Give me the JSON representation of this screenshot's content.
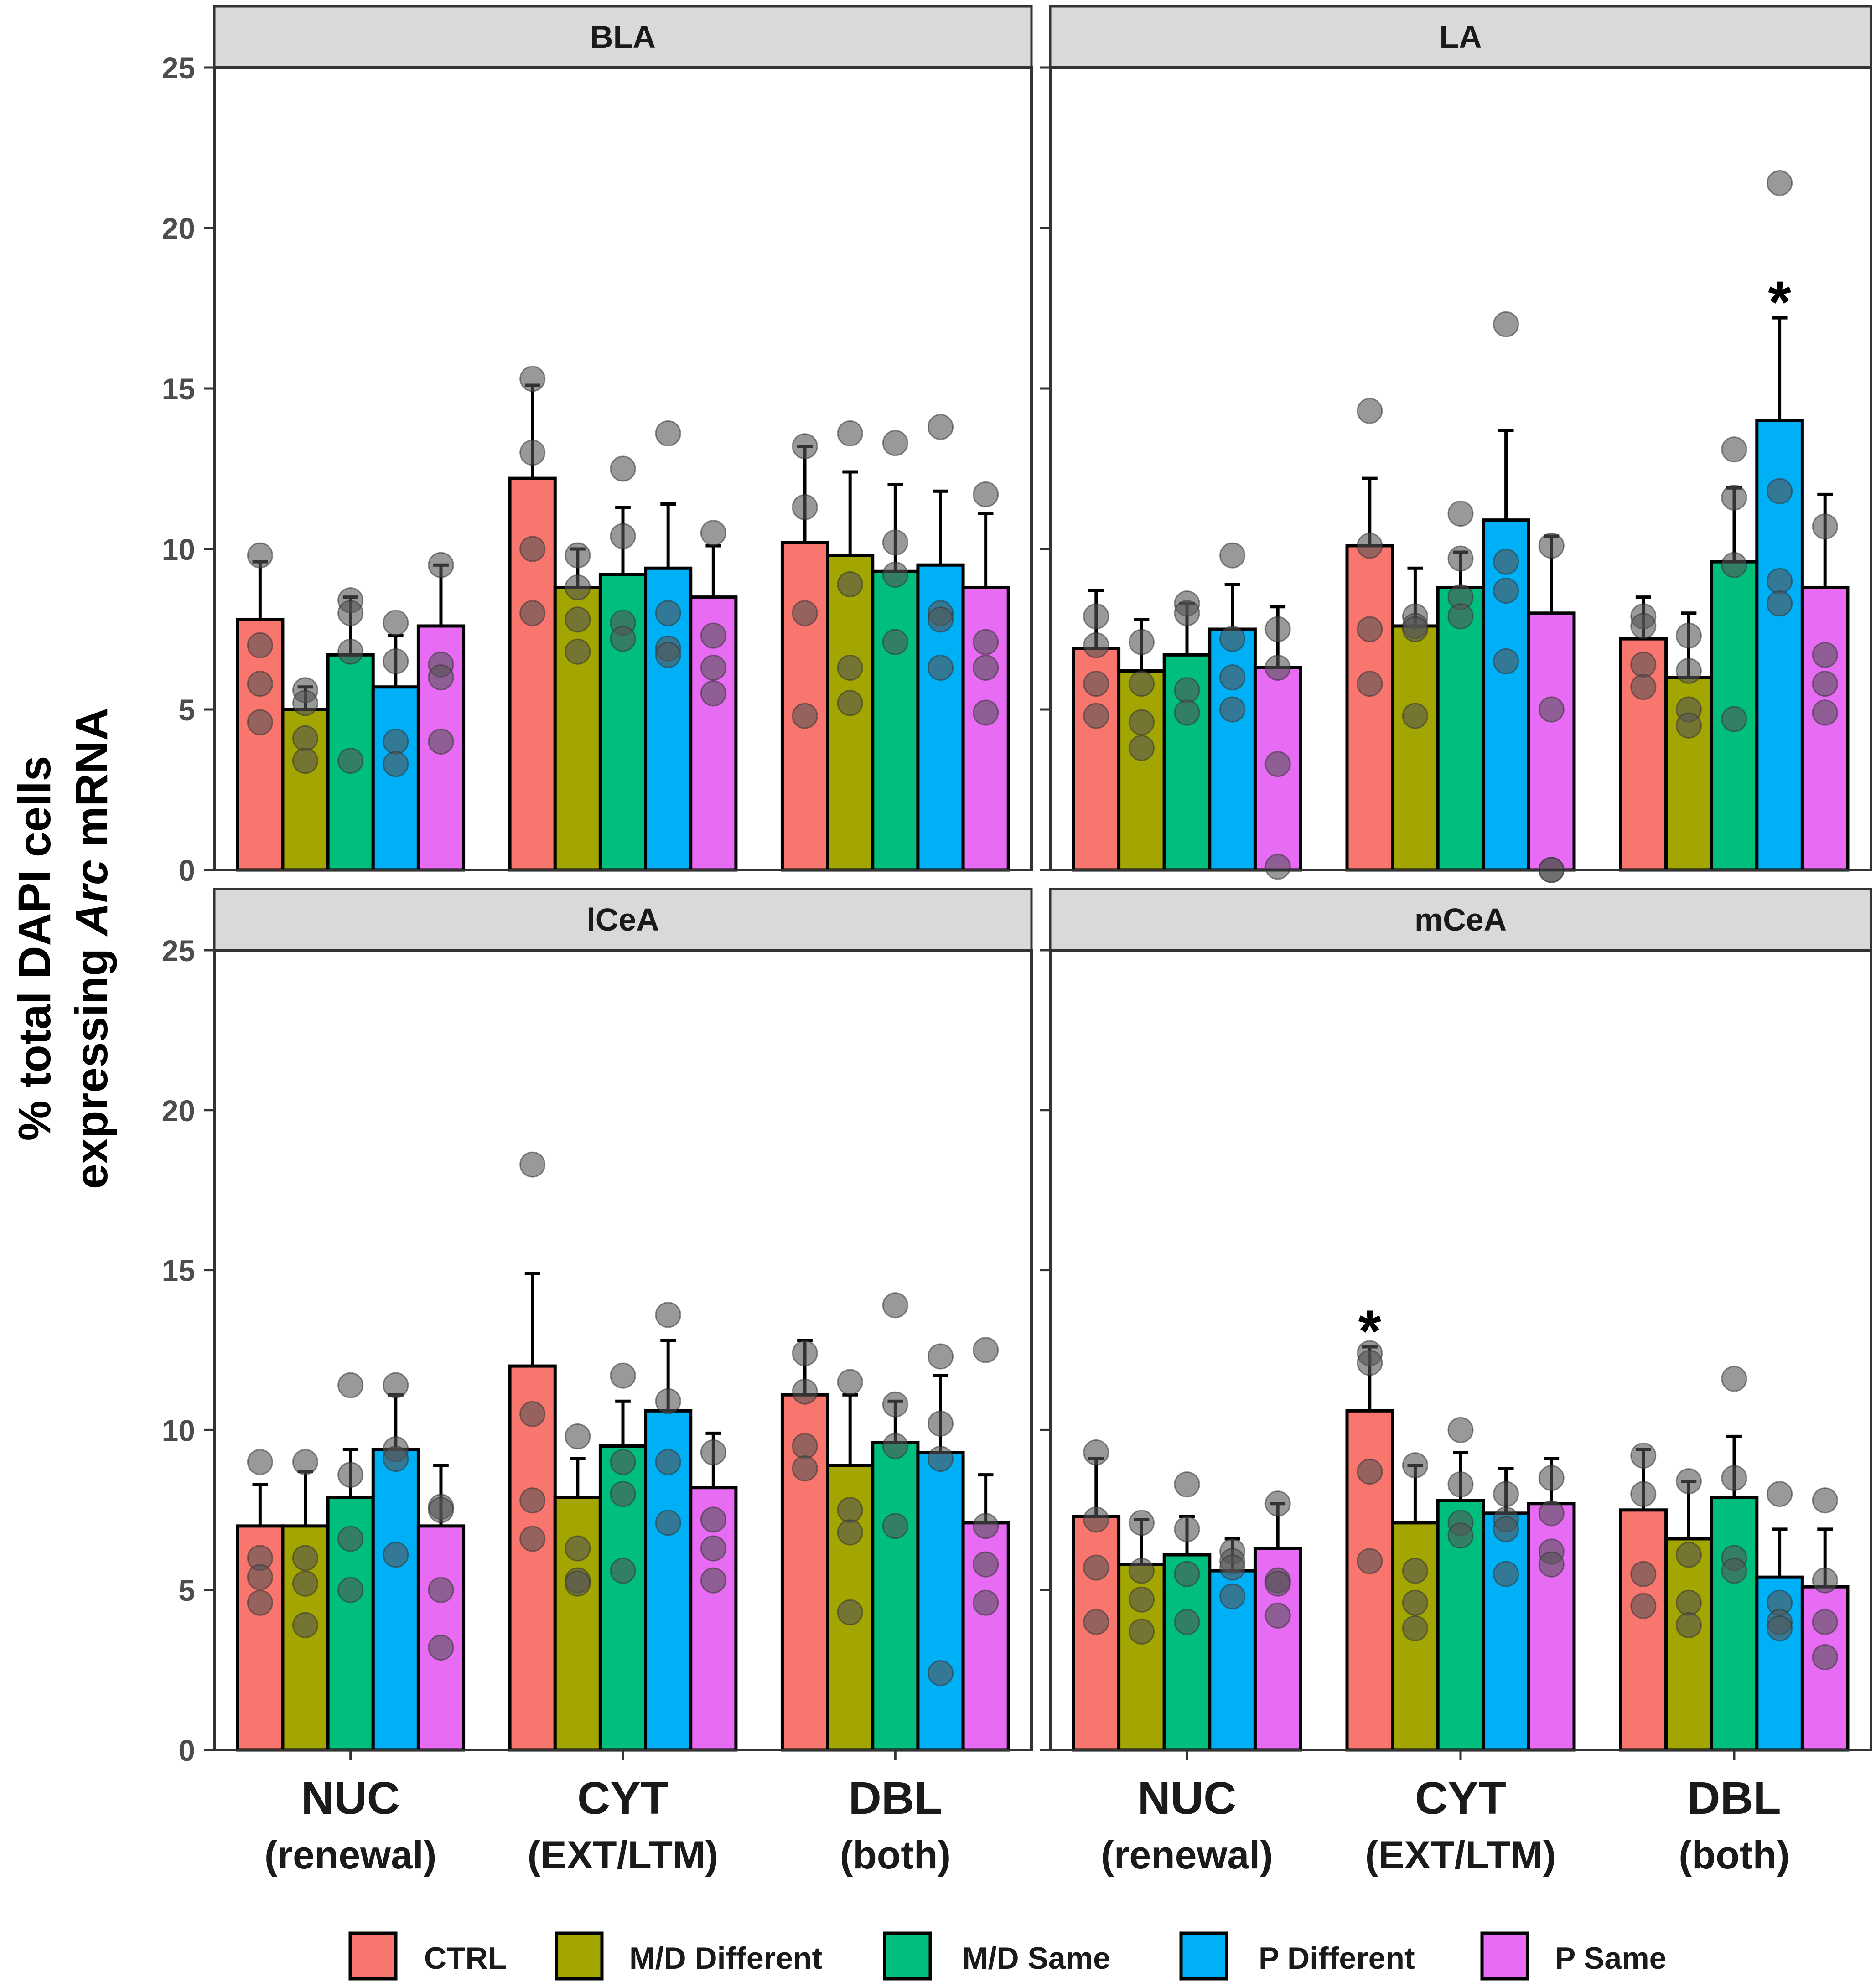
{
  "chart_data": {
    "type": "bar",
    "y_axis_title": {
      "line1": "% total DAPI cells",
      "line2_prefix": "expressing ",
      "line2_italic": "Arc",
      "line2_suffix": " mRNA"
    },
    "ylim": [
      0,
      25
    ],
    "yticks": [
      0,
      5,
      10,
      15,
      20,
      25
    ],
    "categories": [
      {
        "label": "NUC",
        "sublabel": "(renewal)"
      },
      {
        "label": "CYT",
        "sublabel": "(EXT/LTM)"
      },
      {
        "label": "DBL",
        "sublabel": "(both)"
      }
    ],
    "groups": [
      "CTRL",
      "M/D Different",
      "M/D Same",
      "P Different",
      "P Same"
    ],
    "colors": {
      "CTRL": "#F8766D",
      "M/D Different": "#A3A500",
      "M/D Same": "#00BF7D",
      "P Different": "#00B0F6",
      "P Same": "#E76BF3"
    },
    "point_color": "#555555",
    "significance_marker": "*",
    "panels": [
      {
        "title": "BLA",
        "series": [
          {
            "name": "CTRL",
            "values": [
              7.8,
              12.2,
              10.2
            ],
            "errors": [
              1.8,
              2.9,
              3.0
            ],
            "points": [
              [
                9.8,
                7.0,
                5.8,
                4.6
              ],
              [
                15.3,
                13.0,
                10.0,
                8.0
              ],
              [
                13.2,
                11.3,
                8.0,
                4.8
              ]
            ]
          },
          {
            "name": "M/D Different",
            "values": [
              5.0,
              8.8,
              9.8
            ],
            "errors": [
              0.7,
              1.2,
              2.6
            ],
            "points": [
              [
                5.6,
                5.2,
                4.1,
                3.4
              ],
              [
                9.8,
                8.8,
                7.8,
                6.8
              ],
              [
                13.6,
                8.9,
                6.3,
                5.2
              ]
            ]
          },
          {
            "name": "M/D Same",
            "values": [
              6.7,
              9.2,
              9.3
            ],
            "errors": [
              1.8,
              2.1,
              2.7
            ],
            "points": [
              [
                8.4,
                8.0,
                6.8,
                3.4
              ],
              [
                12.5,
                10.4,
                7.7,
                7.2
              ],
              [
                13.3,
                10.2,
                9.2,
                7.1
              ]
            ]
          },
          {
            "name": "P Different",
            "values": [
              5.7,
              9.4,
              9.5
            ],
            "errors": [
              1.6,
              2.0,
              2.3
            ],
            "points": [
              [
                7.7,
                6.5,
                4.0,
                3.3
              ],
              [
                13.6,
                8.0,
                6.9,
                6.7
              ],
              [
                13.8,
                8.0,
                7.8,
                6.3
              ]
            ]
          },
          {
            "name": "P Same",
            "values": [
              7.6,
              8.5,
              8.8
            ],
            "errors": [
              1.9,
              1.6,
              2.3
            ],
            "points": [
              [
                9.5,
                6.4,
                6.0,
                4.0
              ],
              [
                10.5,
                7.3,
                6.3,
                5.5
              ],
              [
                11.7,
                7.1,
                6.3,
                4.9
              ]
            ]
          }
        ],
        "significant": []
      },
      {
        "title": "LA",
        "series": [
          {
            "name": "CTRL",
            "values": [
              6.9,
              10.1,
              7.2
            ],
            "errors": [
              1.8,
              2.1,
              1.3
            ],
            "points": [
              [
                7.9,
                7.0,
                5.8,
                4.8
              ],
              [
                14.3,
                10.1,
                7.5,
                5.8
              ],
              [
                7.9,
                7.6,
                6.4,
                5.7
              ]
            ]
          },
          {
            "name": "M/D Different",
            "values": [
              6.2,
              7.6,
              6.0
            ],
            "errors": [
              1.6,
              1.8,
              2.0
            ],
            "points": [
              [
                7.1,
                5.8,
                4.6,
                3.8
              ],
              [
                7.9,
                7.6,
                7.5,
                4.8
              ],
              [
                7.3,
                6.2,
                5.0,
                4.5
              ]
            ]
          },
          {
            "name": "M/D Same",
            "values": [
              6.7,
              8.8,
              9.6
            ],
            "errors": [
              1.6,
              1.1,
              2.3
            ],
            "points": [
              [
                8.3,
                8.0,
                5.6,
                4.9
              ],
              [
                11.1,
                9.7,
                8.5,
                7.9
              ],
              [
                13.1,
                11.6,
                9.5,
                4.7
              ]
            ]
          },
          {
            "name": "P Different",
            "values": [
              7.5,
              10.9,
              14.0
            ],
            "errors": [
              1.4,
              2.8,
              3.2
            ],
            "points": [
              [
                9.8,
                7.2,
                6.0,
                5.0
              ],
              [
                17.0,
                9.6,
                8.7,
                6.5
              ],
              [
                21.4,
                11.8,
                9.0,
                8.3
              ]
            ]
          },
          {
            "name": "P Same",
            "values": [
              6.3,
              8.0,
              8.8
            ],
            "errors": [
              1.9,
              2.4,
              2.9
            ],
            "points": [
              [
                7.5,
                6.3,
                3.3,
                0.1
              ],
              [
                10.1,
                5.0,
                0.0,
                0.0
              ],
              [
                10.7,
                6.7,
                5.8,
                4.9
              ]
            ]
          }
        ],
        "significant": [
          {
            "category": 2,
            "series": 3
          }
        ]
      },
      {
        "title": "lCeA",
        "series": [
          {
            "name": "CTRL",
            "values": [
              7.0,
              12.0,
              11.1
            ],
            "errors": [
              1.3,
              2.9,
              1.7
            ],
            "points": [
              [
                9.0,
                6.0,
                5.4,
                4.6
              ],
              [
                18.3,
                10.5,
                7.8,
                6.6
              ],
              [
                12.4,
                11.2,
                9.5,
                8.8
              ]
            ]
          },
          {
            "name": "M/D Different",
            "values": [
              7.0,
              7.9,
              8.9
            ],
            "errors": [
              1.7,
              1.2,
              2.2
            ],
            "points": [
              [
                9.0,
                6.0,
                5.2,
                3.9
              ],
              [
                9.8,
                6.3,
                5.3,
                5.2
              ],
              [
                11.5,
                7.5,
                6.8,
                4.3
              ]
            ]
          },
          {
            "name": "M/D Same",
            "values": [
              7.9,
              9.5,
              9.6
            ],
            "errors": [
              1.5,
              1.4,
              1.3
            ],
            "points": [
              [
                11.4,
                8.6,
                6.6,
                5.0
              ],
              [
                11.7,
                9.0,
                8.0,
                5.6
              ],
              [
                13.9,
                10.8,
                9.5,
                7.0
              ]
            ]
          },
          {
            "name": "P Different",
            "values": [
              9.4,
              10.6,
              9.3
            ],
            "errors": [
              1.7,
              2.2,
              2.4
            ],
            "points": [
              [
                11.4,
                9.4,
                9.1,
                6.1
              ],
              [
                13.6,
                10.9,
                9.0,
                7.1
              ],
              [
                12.3,
                10.2,
                9.1,
                2.4
              ]
            ]
          },
          {
            "name": "P Same",
            "values": [
              7.0,
              8.2,
              7.1
            ],
            "errors": [
              1.9,
              1.7,
              1.5
            ],
            "points": [
              [
                7.6,
                7.5,
                5.0,
                3.2
              ],
              [
                9.3,
                7.2,
                6.3,
                5.3
              ],
              [
                12.5,
                7.0,
                5.8,
                4.6
              ]
            ]
          }
        ],
        "significant": []
      },
      {
        "title": "mCeA",
        "series": [
          {
            "name": "CTRL",
            "values": [
              7.3,
              10.6,
              7.5
            ],
            "errors": [
              1.8,
              2.0,
              1.9
            ],
            "points": [
              [
                9.3,
                7.2,
                5.7,
                4.0
              ],
              [
                12.4,
                12.1,
                8.7,
                5.9
              ],
              [
                9.2,
                8.0,
                5.5,
                4.5
              ]
            ]
          },
          {
            "name": "M/D Different",
            "values": [
              5.8,
              7.1,
              6.6
            ],
            "errors": [
              1.4,
              1.8,
              1.8
            ],
            "points": [
              [
                7.1,
                5.6,
                4.7,
                3.7
              ],
              [
                8.9,
                5.6,
                4.6,
                3.8
              ],
              [
                8.4,
                6.1,
                4.6,
                3.9
              ]
            ]
          },
          {
            "name": "M/D Same",
            "values": [
              6.1,
              7.8,
              7.9
            ],
            "errors": [
              1.2,
              1.5,
              1.9
            ],
            "points": [
              [
                8.3,
                6.9,
                5.5,
                4.0
              ],
              [
                10.0,
                8.3,
                7.1,
                6.7
              ],
              [
                11.6,
                8.5,
                6.0,
                5.6
              ]
            ]
          },
          {
            "name": "P Different",
            "values": [
              5.6,
              7.4,
              5.4
            ],
            "errors": [
              1.0,
              1.4,
              1.5
            ],
            "points": [
              [
                6.2,
                5.9,
                5.7,
                4.8
              ],
              [
                8.0,
                7.2,
                6.9,
                5.5
              ],
              [
                8.0,
                4.6,
                4.0,
                3.8
              ]
            ]
          },
          {
            "name": "P Same",
            "values": [
              6.3,
              7.7,
              5.1
            ],
            "errors": [
              1.4,
              1.4,
              1.8
            ],
            "points": [
              [
                7.7,
                5.3,
                5.2,
                4.2
              ],
              [
                8.5,
                7.4,
                6.2,
                5.8
              ],
              [
                7.8,
                5.3,
                4.0,
                2.9
              ]
            ]
          }
        ],
        "significant": [
          {
            "category": 1,
            "series": 0
          }
        ]
      }
    ]
  }
}
